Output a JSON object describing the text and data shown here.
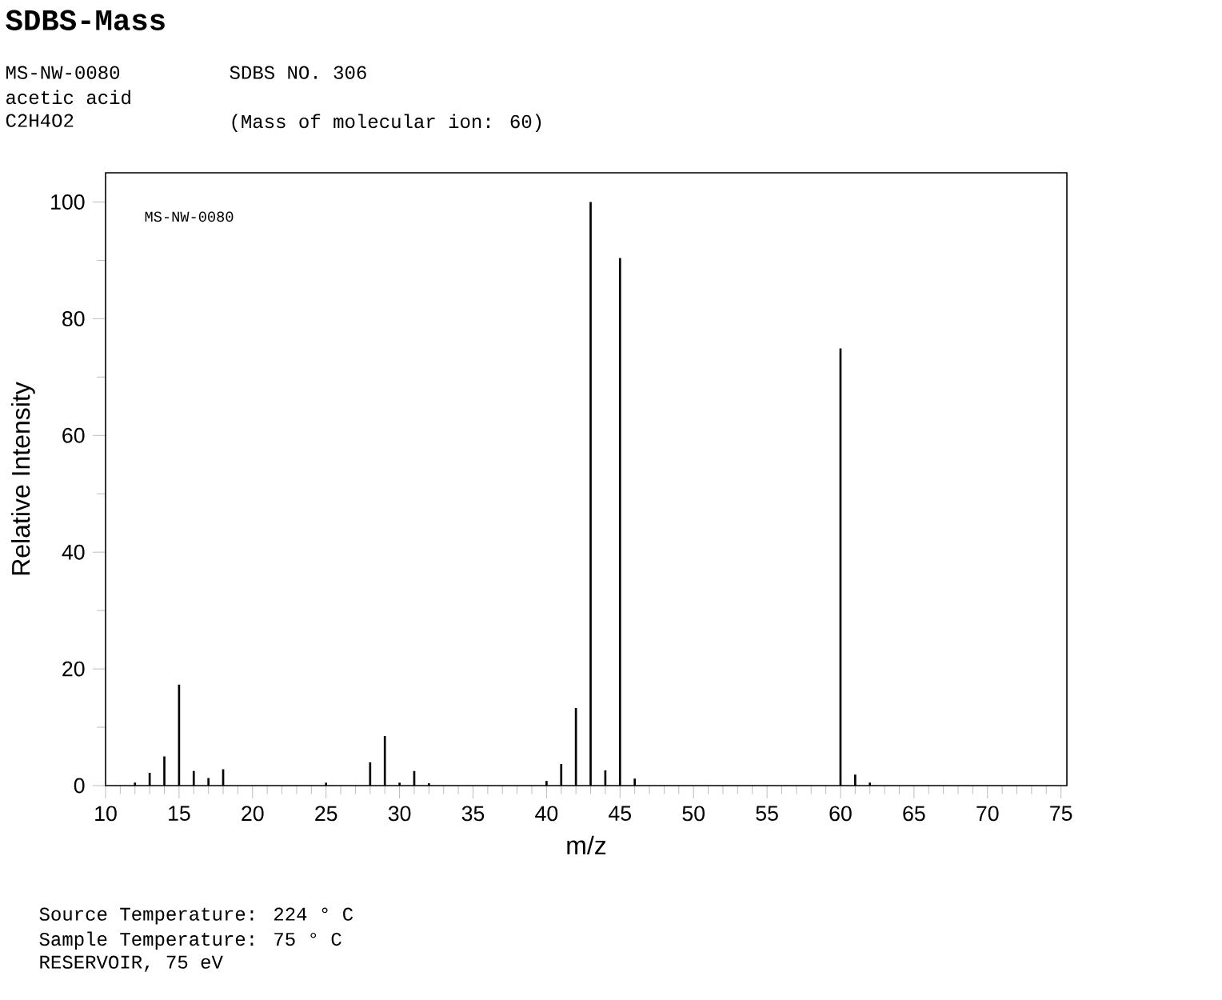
{
  "chart_data": {
    "type": "bar",
    "title": "SDBS-Mass",
    "xlabel": "m/z",
    "ylabel": "Relative Intensity",
    "color": "#000000",
    "x": [
      12,
      13,
      14,
      15,
      16,
      17,
      18,
      25,
      28,
      29,
      30,
      31,
      32,
      40,
      41,
      42,
      43,
      44,
      45,
      46,
      60,
      61,
      62
    ],
    "values": [
      0.5,
      2.2,
      5.0,
      17.3,
      2.5,
      1.3,
      2.8,
      0.5,
      4.0,
      8.5,
      0.5,
      2.5,
      0.4,
      0.8,
      3.7,
      13.3,
      100,
      2.6,
      90.4,
      1.2,
      74.9,
      1.9,
      0.5
    ],
    "xlim": [
      10,
      75.4
    ],
    "ylim": [
      0,
      105
    ],
    "xticks": [
      10,
      15,
      20,
      25,
      30,
      35,
      40,
      45,
      50,
      55,
      60,
      65,
      70,
      75
    ],
    "yticks": [
      0,
      20,
      40,
      60,
      80,
      100
    ],
    "annotations": [
      "MS-NW-0080",
      "SDBS NO. 306",
      "acetic acid",
      "C2H4O2",
      "(Mass of molecular ion: 60)",
      "MS-NW-0080",
      "Source Temperature: 224 ° C",
      "Sample Temperature: 75 ° C",
      "RESERVOIR, 75 eV"
    ]
  }
}
